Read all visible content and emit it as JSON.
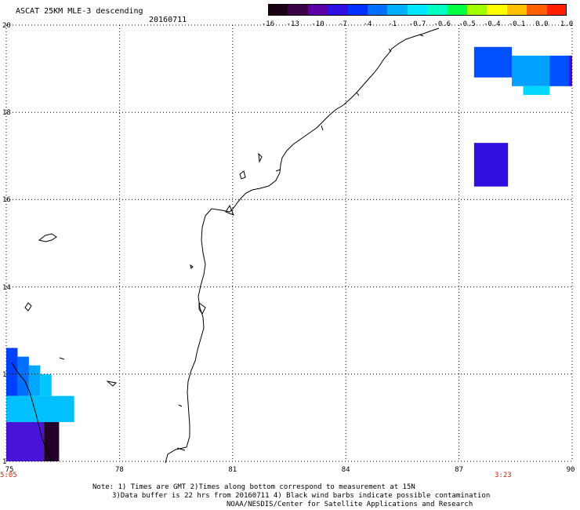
{
  "header": {
    "title": "ASCAT 25KM MLE-3 descending",
    "date": "20160711"
  },
  "colorbar": {
    "colors": [
      "#1a0014",
      "#3a0048",
      "#5c00a8",
      "#2e10e0",
      "#0030ff",
      "#0070ff",
      "#00b0ff",
      "#00e8ff",
      "#00ffc0",
      "#00ff40",
      "#a0ff00",
      "#ffff00",
      "#ffc000",
      "#ff6000",
      "#ff2000"
    ],
    "labels": [
      "-16",
      "-13",
      "-10",
      "-7",
      "-4",
      "-1",
      "-0.7",
      "-0.6",
      "-0.5",
      "-0.4",
      "-0.1",
      "0.0",
      "1.0"
    ]
  },
  "map": {
    "lon_range": [
      75,
      90
    ],
    "lat_range": [
      10,
      20
    ],
    "lon_ticks": [
      "75",
      "78",
      "81",
      "84",
      "87",
      "90"
    ],
    "lat_ticks": [
      "20",
      "18",
      "16",
      "14",
      "1",
      "1"
    ],
    "grid": "dotted",
    "time_start": "5:05",
    "time_end": "3:23",
    "swaths": [
      {
        "region": "southwest",
        "cells": [
          {
            "lon": [
              75.0,
              75.3
            ],
            "lat": [
              12.6,
              11.5
            ],
            "color": "#0040ff"
          },
          {
            "lon": [
              75.3,
              75.6
            ],
            "lat": [
              12.4,
              11.5
            ],
            "color": "#0070ff"
          },
          {
            "lon": [
              75.6,
              75.9
            ],
            "lat": [
              12.2,
              11.5
            ],
            "color": "#00a8ff"
          },
          {
            "lon": [
              75.9,
              76.2
            ],
            "lat": [
              12.0,
              11.5
            ],
            "color": "#00c8ff"
          },
          {
            "lon": [
              75.0,
              76.8
            ],
            "lat": [
              11.5,
              10.9
            ],
            "color": "#00c0ff"
          },
          {
            "lon": [
              75.0,
              76.0
            ],
            "lat": [
              10.9,
              10.0
            ],
            "color": "#4a14d8"
          },
          {
            "lon": [
              76.0,
              76.4
            ],
            "lat": [
              10.9,
              10.0
            ],
            "color": "#22002a"
          }
        ]
      },
      {
        "region": "northeast",
        "cells": [
          {
            "lon": [
              87.4,
              88.4
            ],
            "lat": [
              19.5,
              18.8
            ],
            "color": "#0050ff"
          },
          {
            "lon": [
              88.4,
              89.4
            ],
            "lat": [
              19.3,
              18.6
            ],
            "color": "#00a0ff"
          },
          {
            "lon": [
              88.7,
              89.4
            ],
            "lat": [
              18.6,
              18.4
            ],
            "color": "#00d8ff"
          },
          {
            "lon": [
              89.4,
              89.9
            ],
            "lat": [
              19.3,
              18.6
            ],
            "color": "#0050ff"
          },
          {
            "lon": [
              89.9,
              90.0
            ],
            "lat": [
              19.3,
              18.6
            ],
            "color": "#3a10e0"
          },
          {
            "lon": [
              87.4,
              88.3
            ],
            "lat": [
              17.3,
              16.3
            ],
            "color": "#3010e0"
          }
        ]
      }
    ]
  },
  "notes": {
    "line1": "Note: 1) Times are GMT 2)Times along bottom correspond to measurement at 15N",
    "line2": "3)Data buffer is 22 hrs from 20160711 4) Black wind barbs indicate possible contamination",
    "line3": "NOAA/NESDIS/Center for Satellite Applications and Research"
  }
}
